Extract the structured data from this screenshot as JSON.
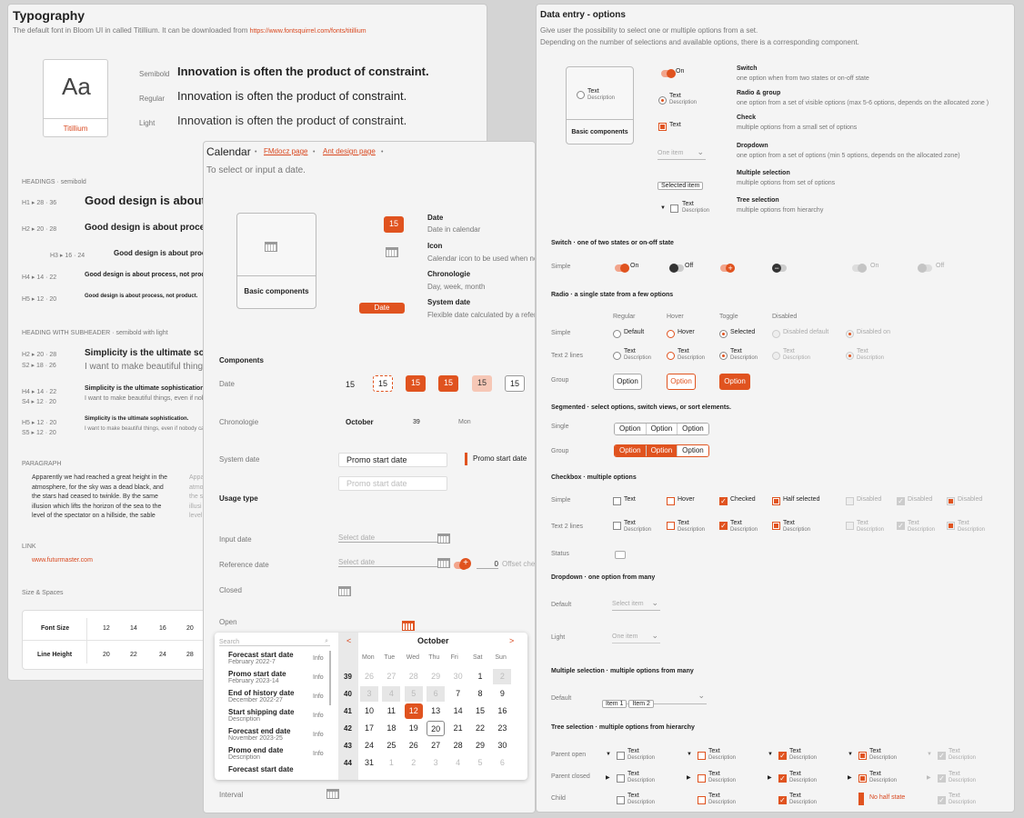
{
  "typo": {
    "title": "Typography",
    "desc": "The default font in Bloom UI in called Titillium.  It can be downloaded from ",
    "link": "https://www.fontsquirrel.com/fonts/titillium",
    "sample": "Aa",
    "font_name": "Titillium",
    "weights": [
      {
        "label": "Semibold",
        "text": "Innovation is often the product of constraint."
      },
      {
        "label": "Regular",
        "text": "Innovation is often the product of constraint."
      },
      {
        "label": "Light",
        "text": "Innovation is often the product of constraint."
      }
    ],
    "headings_title": "HEADINGS · semibold",
    "headings": [
      {
        "tag": "H1",
        "size": "28 · 36",
        "text": "Good design is about p"
      },
      {
        "tag": "H2",
        "size": "20 · 28",
        "text": "Good design is about process,"
      },
      {
        "tag": "H3",
        "size": "16 · 24",
        "text": "Good design is about process"
      },
      {
        "tag": "H4",
        "size": "14 · 22",
        "text": "Good design is about process, not product."
      },
      {
        "tag": "H5",
        "size": "12 · 20",
        "text": "Good design is about process, not product."
      }
    ],
    "sub_title": "HEADING WITH SUBHEADER · semibold with light",
    "sub": [
      {
        "a": "H2",
        "as": "20 · 28",
        "b": "S2",
        "bs": "18 · 26",
        "h": "Simplicity is the ultimate soph",
        "s": "I want to make beautiful things, ev"
      },
      {
        "a": "H4",
        "as": "14 · 22",
        "b": "S4",
        "bs": "12 · 20",
        "h": "Simplicity is the ultimate sophistication.",
        "s": "I want to make beautiful things, even if nobo"
      },
      {
        "a": "H5",
        "as": "12 · 20",
        "b": "S5",
        "bs": "12 · 20",
        "h": "Simplicity is the ultimate sophistication.",
        "s": "I want to make beautiful things, even if nobody care"
      }
    ],
    "para_title": "PARAGRAPH",
    "para": "Apparently we had reached a great height in the atmosphere, for the sky was a dead black, and the stars had ceased to twinkle. By the same illusion which lifts the horizon of the sea to the level of the spectator on a hillside, the sable",
    "para2": "Appa atmo the st illusi level",
    "link_title": "LINK",
    "link_value": "www.futurmaster.com",
    "size_title": "Size & Spaces",
    "font_size_label": "Font Size",
    "line_height_label": "Line Height",
    "font_sizes": [
      "12",
      "14",
      "16",
      "20",
      "2"
    ],
    "line_heights": [
      "20",
      "22",
      "24",
      "28",
      "3"
    ]
  },
  "cal": {
    "title": "Calendar",
    "link1": "FMdocz page",
    "link2": "Ant design page",
    "desc": "To select or input a date.",
    "basic": "Basic components",
    "legend": [
      {
        "t": "Date",
        "d": "Date in calendar",
        "chip": "15"
      },
      {
        "t": "Icon",
        "d": "Calendar icon to be used when ne"
      },
      {
        "t": "Chronologie",
        "d": "Day, week, month"
      },
      {
        "t": "System date",
        "d": "Flexible date calculated by a refer",
        "chip": "Date"
      }
    ],
    "components": "Components",
    "date_label": "Date",
    "date_vals": [
      "15",
      "15",
      "15",
      "15",
      "15",
      "15"
    ],
    "chrono_label": "Chronologie",
    "chrono_vals": [
      "October",
      "39",
      "Mon"
    ],
    "sys_label": "System date",
    "sys_val": "Promo start date",
    "sys_ph": "Promo start date",
    "sys_val2": "Promo start date",
    "usage": "Usage type",
    "input_label": "Input date",
    "input_ph": "Select date",
    "ref_label": "Reference date",
    "ref_ph": "Select date",
    "ref_num": "0",
    "ref_offset": "Offset che",
    "closed_label": "Closed",
    "open_label": "Open",
    "interval_label": "Interval",
    "search_ph": "Search",
    "list": [
      {
        "t": "Forecast start date",
        "d": "February 2022-7"
      },
      {
        "t": "Promo start date",
        "d": "February 2023-14"
      },
      {
        "t": "End of history date",
        "d": "December 2022-27"
      },
      {
        "t": "Start shipping date",
        "d": "Description"
      },
      {
        "t": "Forecast end date",
        "d": "November 2023-25"
      },
      {
        "t": "Promo end date",
        "d": "Description"
      },
      {
        "t": "Forecast start date",
        "d": ""
      }
    ],
    "info": "Info",
    "month": "October",
    "prev": "<",
    "next": ">",
    "days": [
      "Mon",
      "Tue",
      "Wed",
      "Thu",
      "Fri",
      "Sat",
      "Sun"
    ],
    "weeks": [
      "39",
      "40",
      "41",
      "42",
      "43",
      "44"
    ],
    "grid": [
      [
        "26",
        "27",
        "28",
        "29",
        "30",
        "1",
        "2"
      ],
      [
        "3",
        "4",
        "5",
        "6",
        "7",
        "8",
        "9"
      ],
      [
        "10",
        "11",
        "12",
        "13",
        "14",
        "15",
        "16"
      ],
      [
        "17",
        "18",
        "19",
        "20",
        "21",
        "22",
        "23"
      ],
      [
        "24",
        "25",
        "26",
        "27",
        "28",
        "29",
        "30"
      ],
      [
        "31",
        "1",
        "2",
        "3",
        "4",
        "5",
        "6"
      ]
    ]
  },
  "entry": {
    "title": "Data entry - options",
    "desc1": "Give user the possibility to select one or multiple options from a set.",
    "desc2": "Depending on the number of selections and available options, there is a corresponding component.",
    "basic": "Basic components",
    "card_text": "Text",
    "card_desc": "Description",
    "items": [
      {
        "t": "Switch",
        "d": "one option when from two states or on-off state",
        "w": "On"
      },
      {
        "t": "Radio & group",
        "d": "one option from a set of visible options (max 5-6 options, depends on the allocated zone )",
        "w": "Text",
        "wd": "Description"
      },
      {
        "t": "Check",
        "d": "multiple options from a small set of options",
        "w": "Text"
      },
      {
        "t": "Dropdown",
        "d": "one option from a set of options (min 5 options, depends on the allocated zone)",
        "w": "One item"
      },
      {
        "t": "Multiple selection",
        "d": "multiple options from set of options",
        "w": "Selected item"
      },
      {
        "t": "Tree selection",
        "d": "multiple options from hierarchy",
        "w": "Text",
        "wd": "Description"
      }
    ],
    "sw_title": "Switch · one of two states or on-off state",
    "sw_row": "Simple",
    "on": "On",
    "off": "Off",
    "rad_title": "Radio · a single state from a few options",
    "rad_cols": [
      "Regular",
      "Hover",
      "Toggle",
      "Disabled"
    ],
    "rad_rows": [
      "Simple",
      "Text 2 lines",
      "Group"
    ],
    "rad_simple": [
      "Default",
      "Hover",
      "Selected",
      "Disabled default",
      "Disabled on"
    ],
    "text": "Text",
    "description": "Description",
    "option": "Option",
    "seg_title": "Segmented · select options, switch views, or sort elements.",
    "seg_rows": [
      "Single",
      "Group"
    ],
    "chk_title": "Checkbox · multiple options",
    "chk_rows": [
      "Simple",
      "Text 2 lines",
      "Status"
    ],
    "chk_simple": [
      "Text",
      "Hover",
      "Checked",
      "Half selected",
      "Disabled",
      "Disabled",
      "Disabled"
    ],
    "dd_title": "Dropdown · one option from many",
    "dd_rows": [
      "Default",
      "Light"
    ],
    "dd_ph1": "Select item",
    "dd_ph2": "One item",
    "ms_title": "Multiple selection · multiple options from many",
    "ms_row": "Default",
    "ms_tags": [
      "Item 1",
      "Item 2"
    ],
    "tree_title": "Tree selection · multiple options from hierarchy",
    "tree_rows": [
      "Parent open",
      "Parent closed",
      "Child"
    ],
    "no_half": "No half state"
  },
  "colors": {
    "accent": "#e0531f"
  }
}
